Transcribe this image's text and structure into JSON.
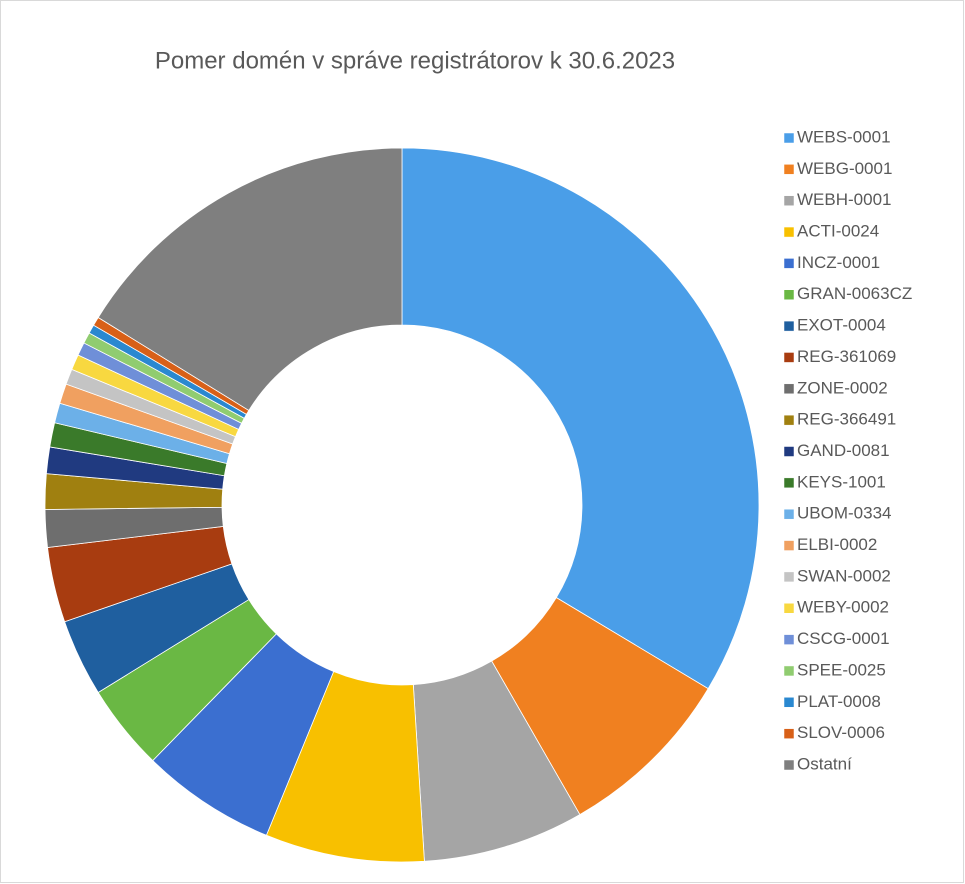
{
  "chart_data": {
    "type": "donut",
    "title": "Pomer domén v správe registrátorov k 30.6.2023",
    "categories": [
      "WEBS-0001",
      "WEBG-0001",
      "WEBH-0001",
      "ACTI-0024",
      "INCZ-0001",
      "GRAN-0063CZ",
      "EXOT-0004",
      "REG-361069",
      "ZONE-0002",
      "REG-366491",
      "GAND-0081",
      "KEYS-1001",
      "UBOM-0334",
      "ELBI-0002",
      "SWAN-0002",
      "WEBY-0002",
      "CSCG-0001",
      "SPEE-0025",
      "PLAT-0008",
      "SLOV-0006",
      "Ostatní"
    ],
    "values": [
      33.6,
      8.1,
      7.3,
      7.2,
      6.1,
      3.9,
      3.5,
      3.4,
      1.7,
      1.6,
      1.2,
      1.1,
      0.9,
      0.9,
      0.7,
      0.7,
      0.6,
      0.5,
      0.4,
      0.4,
      16.2
    ],
    "colors": [
      "#4a9ee8",
      "#f08020",
      "#a5a5a5",
      "#f8c000",
      "#3b6fd0",
      "#6ab844",
      "#1f5f9f",
      "#a83c10",
      "#6e6e6e",
      "#a08010",
      "#203a80",
      "#3a7a2a",
      "#6cb0e8",
      "#f0a060",
      "#c4c4c4",
      "#f8d840",
      "#6f8fd8",
      "#90cc70",
      "#2a88d0",
      "#d86018",
      "#7f7f7f"
    ],
    "legend": "right"
  }
}
